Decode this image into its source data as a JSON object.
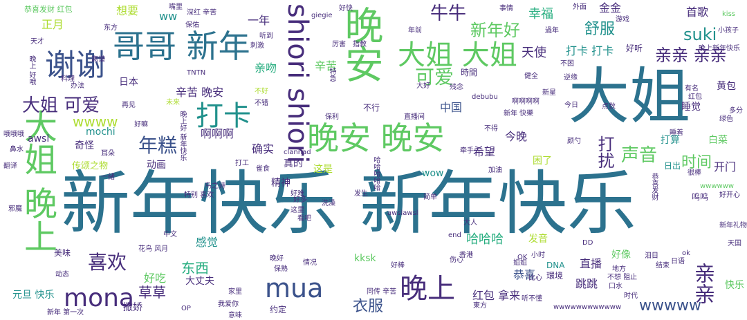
{
  "palette": {
    "dark_purple": "#472d7b",
    "blue": "#3b528b",
    "teal": "#2c728e",
    "teal_green": "#21918c",
    "green": "#28ae80",
    "light_green": "#5ec962",
    "lime": "#addc30",
    "yellow": "#dde318",
    "background": "#ffffff"
  },
  "words": [
    {
      "text": "新年快乐 新年快乐",
      "color": "#2c728e",
      "weight": "largest"
    },
    {
      "text": "大姐",
      "color": "#2c728e",
      "weight": "very-large"
    },
    {
      "text": "哥哥 新年",
      "color": "#2c728e",
      "weight": "large"
    },
    {
      "text": "晚安",
      "color": "#5ec962",
      "weight": "large"
    },
    {
      "text": "大姐 晚上",
      "color": "#5ec962",
      "weight": "large"
    },
    {
      "text": "shiori shiori",
      "color": "#472d7b",
      "weight": "large"
    },
    {
      "text": "晚安 晚安",
      "color": "#5ec962",
      "weight": "large"
    },
    {
      "text": "谢谢",
      "color": "#3b528b",
      "weight": "large"
    },
    {
      "text": "大姐 大姐",
      "color": "#5ec962",
      "weight": "large"
    },
    {
      "text": "打卡",
      "color": "#21918c",
      "weight": "large"
    },
    {
      "text": "晚上",
      "color": "#472d7b",
      "weight": "large"
    },
    {
      "text": "mona",
      "color": "#472d7b",
      "weight": "large"
    },
    {
      "text": "mua",
      "color": "#3b528b",
      "weight": "large"
    },
    {
      "text": "可爱",
      "color": "#5ec962",
      "weight": "medium"
    },
    {
      "text": "新年好",
      "color": "#5ec962",
      "weight": "medium"
    },
    {
      "text": "牛牛",
      "color": "#472d7b",
      "weight": "medium"
    },
    {
      "text": "大姐 可爱",
      "color": "#472d7b",
      "weight": "medium"
    },
    {
      "text": "年糕",
      "color": "#3b528b",
      "weight": "medium"
    },
    {
      "text": "声音",
      "color": "#5ec962",
      "weight": "medium"
    },
    {
      "text": "喜欢",
      "color": "#472d7b",
      "weight": "medium"
    },
    {
      "text": "亲亲 亲亲",
      "color": "#472d7b",
      "weight": "medium"
    },
    {
      "text": "亲亲",
      "color": "#472d7b",
      "weight": "medium"
    },
    {
      "text": "打扰",
      "color": "#472d7b",
      "weight": "medium"
    },
    {
      "text": "wwww",
      "color": "#addc30",
      "weight": "medium"
    },
    {
      "text": "suki",
      "color": "#21918c",
      "weight": "medium"
    },
    {
      "text": "舒服",
      "color": "#21918c",
      "weight": "medium"
    },
    {
      "text": "草草",
      "color": "#472d7b",
      "weight": "medium"
    },
    {
      "text": "衣服",
      "color": "#3b528b",
      "weight": "medium"
    },
    {
      "text": "时间",
      "color": "#5ec962",
      "weight": "medium"
    },
    {
      "text": "幸福",
      "color": "#28ae80",
      "weight": "medium"
    },
    {
      "text": "天使",
      "color": "#472d7b",
      "weight": "medium"
    },
    {
      "text": "wwwww",
      "color": "#3b528b",
      "weight": "medium"
    },
    {
      "text": "东西",
      "color": "#28ae80",
      "weight": "medium"
    },
    {
      "text": "哈哈哈",
      "color": "#28ae80",
      "weight": "medium"
    },
    {
      "text": "辛苦 晚安",
      "color": "#472d7b",
      "weight": "small"
    },
    {
      "text": "打卡 打卡",
      "color": "#21918c",
      "weight": "small"
    },
    {
      "text": "金金",
      "color": "#472d7b",
      "weight": "small"
    },
    {
      "text": "首歌",
      "color": "#472d7b",
      "weight": "small"
    },
    {
      "text": "中国",
      "color": "#3b528b",
      "weight": "small"
    },
    {
      "text": "好吃",
      "color": "#5ec962",
      "weight": "small"
    },
    {
      "text": "红包 拿来",
      "color": "#472d7b",
      "weight": "small"
    },
    {
      "text": "直播",
      "color": "#472d7b",
      "weight": "small"
    },
    {
      "text": "恭喜",
      "color": "#3b528b",
      "weight": "small"
    },
    {
      "text": "跳跳",
      "color": "#472d7b",
      "weight": "small"
    },
    {
      "text": "感觉",
      "color": "#21918c",
      "weight": "small"
    },
    {
      "text": "大丈夫",
      "color": "#472d7b",
      "weight": "small"
    },
    {
      "text": "今晚",
      "color": "#472d7b",
      "weight": "small"
    },
    {
      "text": "希望",
      "color": "#472d7b",
      "weight": "small"
    },
    {
      "text": "啊啊啊",
      "color": "#472d7b",
      "weight": "small"
    },
    {
      "text": "确实",
      "color": "#472d7b",
      "weight": "small"
    },
    {
      "text": "开门",
      "color": "#472d7b",
      "weight": "small"
    },
    {
      "text": "一年",
      "color": "#472d7b",
      "weight": "small"
    },
    {
      "text": "亲吻",
      "color": "#28ae80",
      "weight": "small"
    },
    {
      "text": "辛苦",
      "color": "#5ec962",
      "weight": "small"
    },
    {
      "text": "正月",
      "color": "#addc30",
      "weight": "small"
    },
    {
      "text": "想要",
      "color": "#addc30",
      "weight": "small"
    },
    {
      "text": "ww",
      "color": "#21918c",
      "weight": "small"
    },
    {
      "text": "好听",
      "color": "#472d7b",
      "weight": "small"
    },
    {
      "text": "睡觉",
      "color": "#472d7b",
      "weight": "small"
    },
    {
      "text": "打算",
      "color": "#21918c",
      "weight": "small"
    },
    {
      "text": "黄包",
      "color": "#472d7b",
      "weight": "small"
    },
    {
      "text": "白菜",
      "color": "#5ec962",
      "weight": "small"
    },
    {
      "text": "好像",
      "color": "#5ec962",
      "weight": "small"
    },
    {
      "text": "快乐",
      "color": "#5ec962",
      "weight": "small"
    },
    {
      "text": "动画",
      "color": "#472d7b",
      "weight": "small"
    },
    {
      "text": "真的",
      "color": "#472d7b",
      "weight": "small"
    },
    {
      "text": "精神",
      "color": "#472d7b",
      "weight": "small"
    },
    {
      "text": "这是",
      "color": "#addc30",
      "weight": "small"
    },
    {
      "text": "wow",
      "color": "#21918c",
      "weight": "small"
    },
    {
      "text": "kksk",
      "color": "#5ec962",
      "weight": "small"
    },
    {
      "text": "awsl",
      "color": "#472d7b",
      "weight": "small"
    },
    {
      "text": "mochi",
      "color": "#21918c",
      "weight": "small"
    },
    {
      "text": "奇怪",
      "color": "#472d7b",
      "weight": "small"
    },
    {
      "text": "传颂之物",
      "color": "#addc30",
      "weight": "small"
    },
    {
      "text": "元旦 快乐",
      "color": "#21918c",
      "weight": "small"
    },
    {
      "text": "撒娇",
      "color": "#472d7b",
      "weight": "small"
    },
    {
      "text": "约定",
      "color": "#472d7b",
      "weight": "small"
    },
    {
      "text": "日本",
      "color": "#472d7b",
      "weight": "small"
    },
    {
      "text": "不行",
      "color": "#472d7b",
      "weight": "small"
    },
    {
      "text": "困了",
      "color": "#addc30",
      "weight": "small"
    },
    {
      "text": "日出",
      "color": "#21918c",
      "weight": "small"
    },
    {
      "text": "鸣鸣",
      "color": "#472d7b",
      "weight": "small"
    },
    {
      "text": "发音",
      "color": "#addc30",
      "weight": "small"
    },
    {
      "text": "美味",
      "color": "#472d7b",
      "weight": "small"
    },
    {
      "text": "wwwwww",
      "color": "#5ec962",
      "weight": "tiny"
    },
    {
      "text": "啊啊啊啊",
      "color": "#472d7b",
      "weight": "tiny"
    },
    {
      "text": "恭喜发财 红包",
      "color": "#5ec962",
      "weight": "tiny"
    },
    {
      "text": "晚上 好哦",
      "color": "#472d7b",
      "weight": "tiny"
    },
    {
      "text": "天才",
      "color": "#472d7b",
      "weight": "tiny"
    },
    {
      "text": "东方",
      "color": "#472d7b",
      "weight": "tiny"
    },
    {
      "text": "离谱",
      "color": "#472d7b",
      "weight": "tiny"
    },
    {
      "text": "料理",
      "color": "#472d7b",
      "weight": "tiny"
    },
    {
      "text": "再见",
      "color": "#472d7b",
      "weight": "tiny"
    },
    {
      "text": "哦哦哦",
      "color": "#472d7b",
      "weight": "tiny"
    },
    {
      "text": "翻译",
      "color": "#472d7b",
      "weight": "tiny"
    },
    {
      "text": "邪魔",
      "color": "#472d7b",
      "weight": "tiny"
    },
    {
      "text": "动态",
      "color": "#472d7b",
      "weight": "tiny"
    },
    {
      "text": "新年 第一次",
      "color": "#472d7b",
      "weight": "tiny"
    },
    {
      "text": "深红 辛苦",
      "color": "#472d7b",
      "weight": "tiny"
    },
    {
      "text": "听到",
      "color": "#472d7b",
      "weight": "tiny"
    },
    {
      "text": "刺激",
      "color": "#472d7b",
      "weight": "tiny"
    },
    {
      "text": "TNTN",
      "color": "#472d7b",
      "weight": "tiny"
    },
    {
      "text": "不好",
      "color": "#addc30",
      "weight": "tiny"
    },
    {
      "text": "厉害",
      "color": "#472d7b",
      "weight": "tiny"
    },
    {
      "text": "指教",
      "color": "#472d7b",
      "weight": "tiny"
    },
    {
      "text": "giegie",
      "color": "#472d7b",
      "weight": "tiny"
    },
    {
      "text": "鸟之诗",
      "color": "#472d7b",
      "weight": "tiny"
    },
    {
      "text": "特别 喜欢",
      "color": "#472d7b",
      "weight": "tiny"
    },
    {
      "text": "花鸟 风月",
      "color": "#472d7b",
      "weight": "tiny"
    },
    {
      "text": "事情",
      "color": "#472d7b",
      "weight": "tiny"
    },
    {
      "text": "過年",
      "color": "#472d7b",
      "weight": "tiny"
    },
    {
      "text": "小孩子",
      "color": "#472d7b",
      "weight": "tiny"
    },
    {
      "text": "kiss",
      "color": "#5ec962",
      "weight": "tiny"
    },
    {
      "text": "游戏",
      "color": "#472d7b",
      "weight": "tiny"
    },
    {
      "text": "不困",
      "color": "#472d7b",
      "weight": "tiny"
    },
    {
      "text": "健全",
      "color": "#472d7b",
      "weight": "tiny"
    },
    {
      "text": "debubu",
      "color": "#472d7b",
      "weight": "tiny"
    },
    {
      "text": "残念",
      "color": "#472d7b",
      "weight": "tiny"
    },
    {
      "text": "時間",
      "color": "#472d7b",
      "weight": "tiny"
    },
    {
      "text": "绿色",
      "color": "#472d7b",
      "weight": "tiny"
    },
    {
      "text": "多分",
      "color": "#472d7b",
      "weight": "tiny"
    },
    {
      "text": "睡着",
      "color": "#472d7b",
      "weight": "tiny"
    },
    {
      "text": "很棒",
      "color": "#472d7b",
      "weight": "tiny"
    },
    {
      "text": "好开心",
      "color": "#472d7b",
      "weight": "tiny"
    },
    {
      "text": "新年礼物",
      "color": "#472d7b",
      "weight": "tiny"
    },
    {
      "text": "洗澡",
      "color": "#472d7b",
      "weight": "tiny"
    },
    {
      "text": "发生",
      "color": "#472d7b",
      "weight": "tiny"
    },
    {
      "text": "awslawsl",
      "color": "#472d7b",
      "weight": "tiny"
    },
    {
      "text": "大人",
      "color": "#472d7b",
      "weight": "tiny"
    },
    {
      "text": "DNA",
      "color": "#21918c",
      "weight": "tiny"
    },
    {
      "text": "環境",
      "color": "#472d7b",
      "weight": "tiny"
    },
    {
      "text": "地方",
      "color": "#472d7b",
      "weight": "tiny"
    },
    {
      "text": "不想 阻止",
      "color": "#472d7b",
      "weight": "tiny"
    },
    {
      "text": "東方",
      "color": "#472d7b",
      "weight": "tiny"
    },
    {
      "text": "听不懂",
      "color": "#472d7b",
      "weight": "tiny"
    },
    {
      "text": "同传 辛苦",
      "color": "#472d7b",
      "weight": "tiny"
    },
    {
      "text": "家里",
      "color": "#472d7b",
      "weight": "tiny"
    },
    {
      "text": "我爱你",
      "color": "#472d7b",
      "weight": "tiny"
    },
    {
      "text": "意味",
      "color": "#472d7b",
      "weight": "tiny"
    },
    {
      "text": "保熟",
      "color": "#472d7b",
      "weight": "tiny"
    },
    {
      "text": "wwwwwwwwwwww",
      "color": "#472d7b",
      "weight": "tiny"
    },
    {
      "text": "好棒",
      "color": "#472d7b",
      "weight": "tiny"
    },
    {
      "text": "直播间",
      "color": "#472d7b",
      "weight": "tiny"
    },
    {
      "text": "保利",
      "color": "#472d7b",
      "weight": "tiny"
    },
    {
      "text": "外面",
      "color": "#472d7b",
      "weight": "tiny"
    },
    {
      "text": "嘴里",
      "color": "#472d7b",
      "weight": "tiny"
    },
    {
      "text": "clannad",
      "color": "#472d7b",
      "weight": "tiny"
    },
    {
      "text": "加油",
      "color": "#472d7b",
      "weight": "tiny"
    },
    {
      "text": "牵手",
      "color": "#472d7b",
      "weight": "tiny"
    },
    {
      "text": "好快",
      "color": "#472d7b",
      "weight": "tiny"
    },
    {
      "text": "鼻水",
      "color": "#472d7b",
      "weight": "tiny"
    },
    {
      "text": "耳朵",
      "color": "#472d7b",
      "weight": "tiny"
    },
    {
      "text": "一緒",
      "color": "#472d7b",
      "weight": "tiny"
    },
    {
      "text": "雀食",
      "color": "#472d7b",
      "weight": "tiny"
    },
    {
      "text": "简单",
      "color": "#472d7b",
      "weight": "tiny"
    },
    {
      "text": "情况",
      "color": "#472d7b",
      "weight": "tiny"
    },
    {
      "text": "晚好",
      "color": "#472d7b",
      "weight": "tiny"
    },
    {
      "text": "新年 快樂",
      "color": "#472d7b",
      "weight": "tiny"
    },
    {
      "text": "大好",
      "color": "#472d7b",
      "weight": "tiny"
    },
    {
      "text": "年前",
      "color": "#472d7b",
      "weight": "tiny"
    },
    {
      "text": "有名",
      "color": "#472d7b",
      "weight": "tiny"
    },
    {
      "text": "红包",
      "color": "#472d7b",
      "weight": "tiny"
    },
    {
      "text": "点数",
      "color": "#472d7b",
      "weight": "tiny"
    },
    {
      "text": "比心",
      "color": "#472d7b",
      "weight": "tiny"
    },
    {
      "text": "时代",
      "color": "#472d7b",
      "weight": "tiny"
    },
    {
      "text": "天国",
      "color": "#472d7b",
      "weight": "tiny"
    },
    {
      "text": "DD",
      "color": "#472d7b",
      "weight": "tiny"
    },
    {
      "text": "ok",
      "color": "#472d7b",
      "weight": "tiny"
    },
    {
      "text": "OP",
      "color": "#472d7b",
      "weight": "tiny"
    },
    {
      "text": "小时",
      "color": "#472d7b",
      "weight": "tiny"
    },
    {
      "text": "OK",
      "color": "#472d7b",
      "weight": "tiny"
    },
    {
      "text": "伤心",
      "color": "#472d7b",
      "weight": "tiny"
    },
    {
      "text": "end",
      "color": "#472d7b",
      "weight": "tiny"
    },
    {
      "text": "中文",
      "color": "#472d7b",
      "weight": "tiny"
    },
    {
      "text": "好多",
      "color": "#472d7b",
      "weight": "tiny"
    },
    {
      "text": "好嘛",
      "color": "#472d7b",
      "weight": "tiny"
    },
    {
      "text": "新星",
      "color": "#472d7b",
      "weight": "tiny"
    },
    {
      "text": "颜勺",
      "color": "#472d7b",
      "weight": "tiny"
    },
    {
      "text": "今日",
      "color": "#472d7b",
      "weight": "tiny"
    },
    {
      "text": "日语",
      "color": "#472d7b",
      "weight": "tiny"
    },
    {
      "text": "逆缘",
      "color": "#472d7b",
      "weight": "tiny"
    },
    {
      "text": "保佑",
      "color": "#472d7b",
      "weight": "tiny"
    },
    {
      "text": "办法",
      "color": "#472d7b",
      "weight": "tiny"
    },
    {
      "text": "未来",
      "color": "#472d7b",
      "weight": "tiny"
    },
    {
      "text": "好难",
      "color": "#472d7b",
      "weight": "tiny"
    },
    {
      "text": "不错",
      "color": "#472d7b",
      "weight": "tiny"
    },
    {
      "text": "打工",
      "color": "#472d7b",
      "weight": "tiny"
    },
    {
      "text": "这里",
      "color": "#472d7b",
      "weight": "tiny"
    },
    {
      "text": "看吧",
      "color": "#472d7b",
      "weight": "tiny"
    },
    {
      "text": "泪目",
      "color": "#472d7b",
      "weight": "tiny"
    },
    {
      "text": "结束",
      "color": "#472d7b",
      "weight": "tiny"
    },
    {
      "text": "特急",
      "color": "#472d7b",
      "weight": "tiny"
    },
    {
      "text": "恭喜发财",
      "color": "#472d7b",
      "weight": "tiny"
    },
    {
      "text": "晚上好 新年快乐",
      "color": "#472d7b",
      "weight": "tiny"
    },
    {
      "text": "哈哈哈哈哈",
      "color": "#472d7b",
      "weight": "tiny"
    },
    {
      "text": "晚上新年快乐",
      "color": "#472d7b",
      "weight": "tiny"
    },
    {
      "text": "香港",
      "color": "#472d7b",
      "weight": "tiny"
    },
    {
      "text": "姐姐",
      "color": "#472d7b",
      "weight": "tiny"
    },
    {
      "text": "口水",
      "color": "#472d7b",
      "weight": "tiny"
    },
    {
      "text": "不得",
      "color": "#472d7b",
      "weight": "tiny"
    },
    {
      "text": "好吗",
      "color": "#472d7b",
      "weight": "tiny"
    }
  ]
}
